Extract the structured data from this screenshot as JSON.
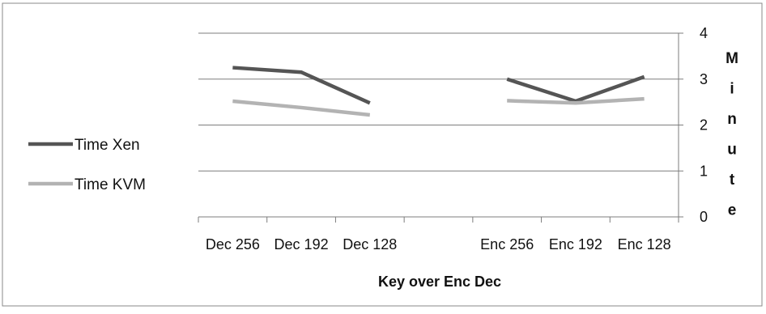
{
  "chart_data": {
    "type": "line",
    "categories": [
      "Dec 256",
      "Dec 192",
      "Dec 128",
      "",
      "Enc 256",
      "Enc 192",
      "Enc 128"
    ],
    "series": [
      {
        "name": "Time Xen",
        "color": "#555555",
        "segments": [
          {
            "x_idx": [
              0,
              1,
              2
            ],
            "values": [
              3.25,
              3.15,
              2.48
            ]
          },
          {
            "x_idx": [
              4,
              5,
              6
            ],
            "values": [
              3.0,
              2.52,
              3.05
            ]
          }
        ]
      },
      {
        "name": "Time KVM",
        "color": "#b3b3b3",
        "segments": [
          {
            "x_idx": [
              0,
              1,
              2
            ],
            "values": [
              2.52,
              2.38,
              2.22
            ]
          },
          {
            "x_idx": [
              4,
              5,
              6
            ],
            "values": [
              2.53,
              2.48,
              2.57
            ]
          }
        ]
      }
    ],
    "xlabel": "Key over Enc Dec",
    "ylabel": "Minute",
    "ylim": [
      0,
      4
    ],
    "yticks": [
      "0",
      "1",
      "2",
      "3",
      "4"
    ],
    "y_axis_side": "right",
    "grid": true,
    "legend": "left"
  }
}
